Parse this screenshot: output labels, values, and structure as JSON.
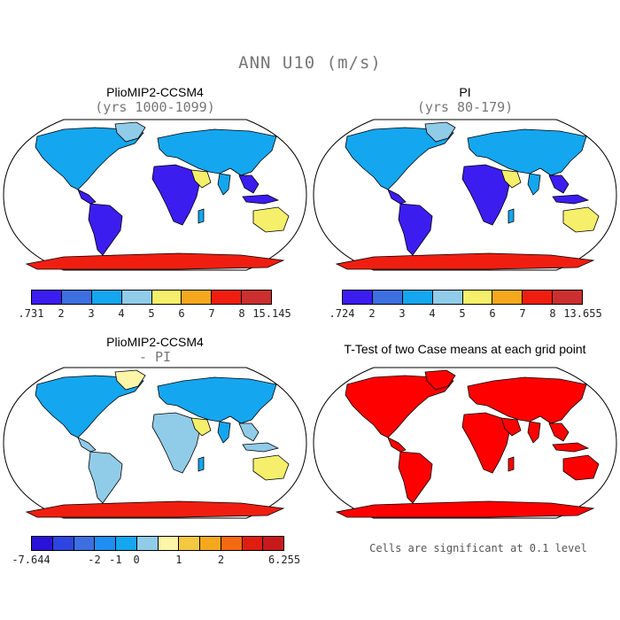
{
  "figure": {
    "title": "ANN U10 (m/s)"
  },
  "panels": [
    {
      "title": "PlioMIP2-CCSM4",
      "subtitle": "(yrs 1000-1099)",
      "colorbar": {
        "colors": [
          "#3b1df0",
          "#3d6fe0",
          "#14a6ef",
          "#90cbe8",
          "#f5ef6b",
          "#f5a81e",
          "#f01e10",
          "#cb2f2f"
        ],
        "labels": [
          ".731",
          "2",
          "3",
          "4",
          "5",
          "6",
          "7",
          "8",
          "15.145"
        ]
      },
      "map_colors": {
        "tropics": "#3b1df0",
        "land": "#14a6ef",
        "dry": "#f5ef6b",
        "high": "#f01e10",
        "pale": "#90cbe8"
      }
    },
    {
      "title": "PI",
      "subtitle": "(yrs 80-179)",
      "colorbar": {
        "colors": [
          "#3b1df0",
          "#3d6fe0",
          "#14a6ef",
          "#90cbe8",
          "#f5ef6b",
          "#f5a81e",
          "#f01e10",
          "#cb2f2f"
        ],
        "labels": [
          ".724",
          "2",
          "3",
          "4",
          "5",
          "6",
          "7",
          "8",
          "13.655"
        ]
      },
      "map_colors": {
        "tropics": "#3b1df0",
        "land": "#14a6ef",
        "dry": "#f5ef6b",
        "high": "#f01e10",
        "pale": "#90cbe8"
      }
    },
    {
      "title": "PlioMIP2-CCSM4",
      "subtitle": "- PI",
      "colorbar": {
        "colors": [
          "#2a12d8",
          "#2e44e0",
          "#3d6fe0",
          "#1f8ef2",
          "#14a6ef",
          "#90cbe8",
          "#fdf5a8",
          "#f5c842",
          "#f5a81e",
          "#f56a10",
          "#e01e10",
          "#c81a1a"
        ],
        "labels": [
          "-7.644",
          "-2",
          "-1",
          "0",
          "1",
          "2",
          "6.255"
        ]
      },
      "map_colors": {
        "tropics": "#90cbe8",
        "land": "#14a6ef",
        "dry": "#f5ef6b",
        "high": "#f01e10",
        "pale": "#fdf5a8"
      }
    },
    {
      "title": "T-Test of two Case means at each grid point",
      "note": "Cells are significant at 0.1 level",
      "map_colors": {
        "land": "#ff0000"
      }
    }
  ]
}
